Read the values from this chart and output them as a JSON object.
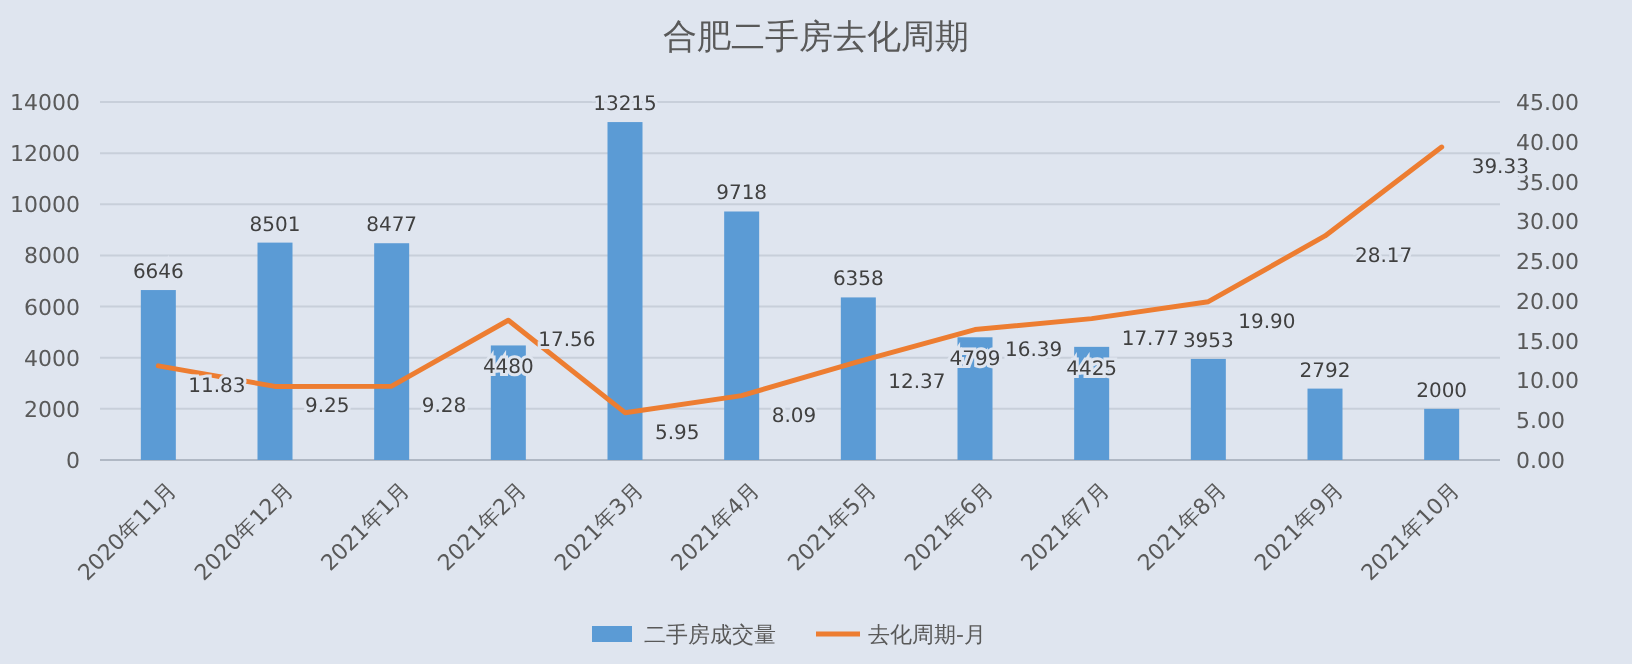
{
  "chart_data": {
    "type": "bar",
    "title": "合肥二手房去化周期",
    "categories": [
      "2020年11月",
      "2020年12月",
      "2021年1月",
      "2021年2月",
      "2021年3月",
      "2021年4月",
      "2021年5月",
      "2021年6月",
      "2021年7月",
      "2021年8月",
      "2021年9月",
      "2021年10月"
    ],
    "series": [
      {
        "name": "二手房成交量",
        "type": "bar",
        "color": "#5b9bd5",
        "values": [
          6646,
          8501,
          8477,
          4480,
          13215,
          9718,
          6358,
          4799,
          4425,
          3953,
          2792,
          2000
        ]
      },
      {
        "name": "去化周期-月",
        "type": "line",
        "axis": "y2",
        "color": "#ed7d31",
        "values": [
          11.83,
          9.25,
          9.28,
          17.56,
          5.95,
          8.09,
          12.37,
          16.39,
          17.77,
          19.9,
          28.17,
          39.33
        ],
        "value_labels": [
          "11.83",
          "9.25",
          "9.28",
          "17.56",
          "5.95",
          "8.09",
          "12.37",
          "16.39",
          "17.77",
          "19.90",
          "28.17",
          "39.33"
        ]
      }
    ],
    "ylim": [
      0,
      14000
    ],
    "yticks": [
      0,
      2000,
      4000,
      6000,
      8000,
      10000,
      12000,
      14000
    ],
    "y2lim": [
      0,
      45
    ],
    "y2ticks": [
      {
        "value": 0,
        "label": "0.00"
      },
      {
        "value": 5,
        "label": "5.00"
      },
      {
        "value": 10,
        "label": "10.00"
      },
      {
        "value": 15,
        "label": "15.00"
      },
      {
        "value": 20,
        "label": "20.00"
      },
      {
        "value": 25,
        "label": "25.00"
      },
      {
        "value": 30,
        "label": "30.00"
      },
      {
        "value": 35,
        "label": "35.00"
      },
      {
        "value": 40,
        "label": "40.00"
      },
      {
        "value": 45,
        "label": "45.00"
      }
    ],
    "grid": "y",
    "legend": "bottom",
    "data_labels": true,
    "marker": "none",
    "line_style": "solid"
  }
}
